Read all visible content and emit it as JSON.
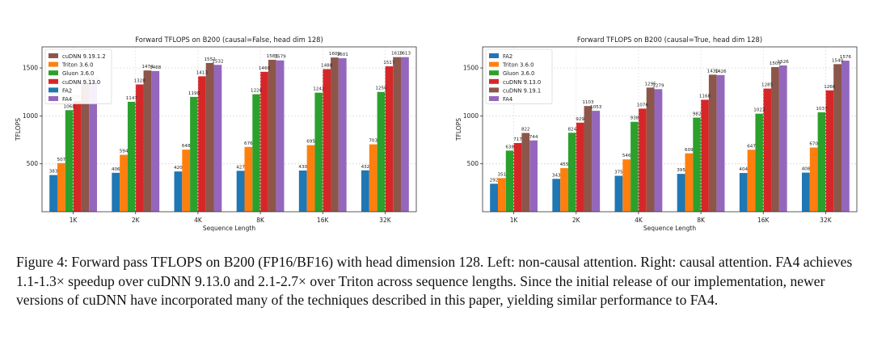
{
  "figure": {
    "caption": "Figure 4: Forward pass TFLOPS on B200 (FP16/BF16) with head dimension 128. Left: non-causal attention. Right: causal attention. FA4 achieves 1.1-1.3× speedup over cuDNN 9.13.0 and 2.1-2.7× over Triton across sequence lengths. Since the initial release of our implementation, newer versions of cuDNN have incorporated many of the techniques described in this paper, yielding similar performance to FA4."
  },
  "colors": {
    "FA2": "#1f77b4",
    "Triton 3.6.0": "#ff7f0e",
    "Gluon 3.6.0": "#2ca02c",
    "cuDNN 9.13.0": "#d62728",
    "cuDNN 9.19.1": "#8c564b",
    "cuDNN 9.19.1.2": "#8c564b",
    "FA4": "#9467bd"
  },
  "chart_data": [
    {
      "type": "bar",
      "title": "Forward TFLOPS on B200 (causal=False, head dim 128)",
      "xlabel": "Sequence Length",
      "ylabel": "TFLOPS",
      "ylim": [
        0,
        1720
      ],
      "yticks": [
        500,
        1000,
        1500
      ],
      "grid": true,
      "legend_position": "top-left",
      "legend_order": [
        "cuDNN 9.19.1.2",
        "Triton 3.6.0",
        "Gluon 3.6.0",
        "cuDNN 9.13.0",
        "FA2",
        "FA4"
      ],
      "categories": [
        "1K",
        "2K",
        "4K",
        "8K",
        "16K",
        "32K"
      ],
      "series": [
        {
          "name": "FA2",
          "values": [
            383,
            406,
            420,
            427,
            430,
            432
          ]
        },
        {
          "name": "Triton 3.6.0",
          "values": [
            507,
            594,
            648,
            676,
            695,
            703
          ]
        },
        {
          "name": "Gluon 3.6.0",
          "values": [
            1060,
            1147,
            1198,
            1226,
            1242,
            1250
          ]
        },
        {
          "name": "cuDNN 9.13.0",
          "values": [
            1157,
            1328,
            1413,
            1460,
            1488,
            1517
          ]
        },
        {
          "name": "cuDNN 9.19.1.2",
          "values": [
            1346,
            1474,
            1552,
            1585,
            1609,
            1613
          ]
        },
        {
          "name": "FA4",
          "values": [
            1355,
            1468,
            1532,
            1579,
            1601,
            1613
          ]
        }
      ]
    },
    {
      "type": "bar",
      "title": "Forward TFLOPS on B200 (causal=True, head dim 128)",
      "xlabel": "Sequence Length",
      "ylabel": "TFLOPS",
      "ylim": [
        0,
        1720
      ],
      "yticks": [
        500,
        1000,
        1500
      ],
      "grid": true,
      "legend_position": "top-left",
      "legend_order": [
        "FA2",
        "Triton 3.6.0",
        "Gluon 3.6.0",
        "cuDNN 9.13.0",
        "cuDNN 9.19.1",
        "FA4"
      ],
      "categories": [
        "1K",
        "2K",
        "4K",
        "8K",
        "16K",
        "32K"
      ],
      "series": [
        {
          "name": "FA2",
          "values": [
            292,
            343,
            375,
            395,
            404,
            408
          ]
        },
        {
          "name": "Triton 3.6.0",
          "values": [
            351,
            455,
            546,
            609,
            647,
            670
          ]
        },
        {
          "name": "Gluon 3.6.0",
          "values": [
            638,
            824,
            938,
            982,
            1023,
            1037
          ]
        },
        {
          "name": "cuDNN 9.13.0",
          "values": [
            717,
            929,
            1076,
            1168,
            1285,
            1266
          ]
        },
        {
          "name": "cuDNN 9.19.1",
          "values": [
            822,
            1103,
            1295,
            1430,
            1509,
            1540
          ]
        },
        {
          "name": "FA4",
          "values": [
            744,
            1053,
            1279,
            1426,
            1526,
            1576
          ]
        }
      ]
    }
  ]
}
